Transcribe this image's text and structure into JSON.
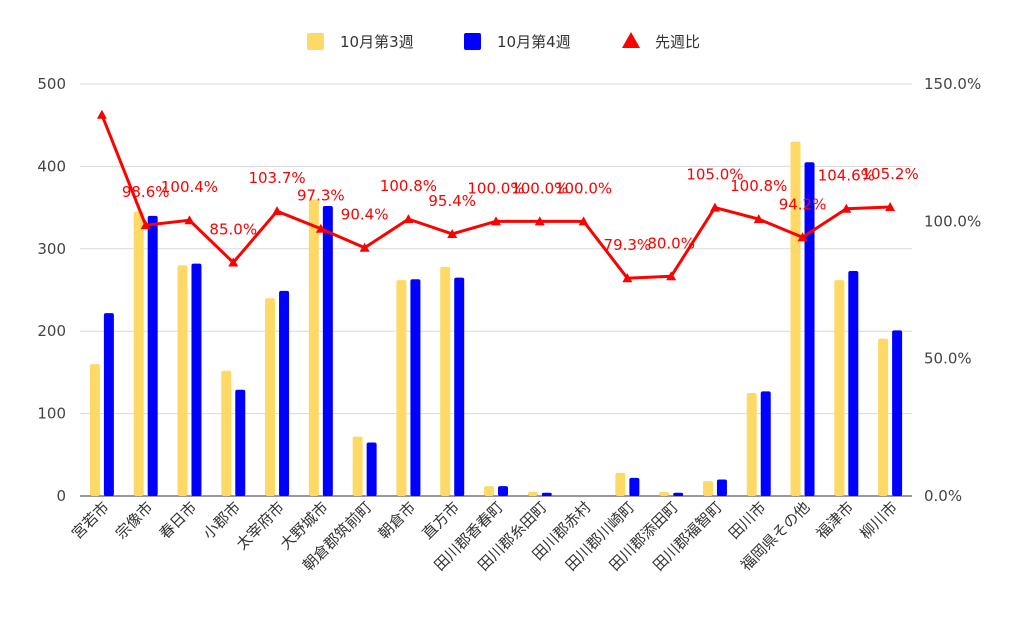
{
  "chart_data": {
    "type": "bar",
    "title": "",
    "legend_position": "top",
    "grid": true,
    "categories": [
      "宮若市",
      "宗像市",
      "春日市",
      "小郡市",
      "太宰府市",
      "大野城市",
      "朝倉郡筑前町",
      "朝倉市",
      "直方市",
      "田川郡香春町",
      "田川郡糸田町",
      "田川郡赤村",
      "田川郡川崎町",
      "田川郡添田町",
      "田川郡福智町",
      "田川市",
      "福岡県その他",
      "福津市",
      "柳川市"
    ],
    "series": [
      {
        "name": "10月第3週",
        "axis": "left",
        "color": "#ffd966",
        "values": [
          160,
          345,
          280,
          152,
          240,
          360,
          72,
          262,
          278,
          12,
          5,
          0,
          28,
          5,
          18,
          125,
          430,
          262,
          191
        ]
      },
      {
        "name": "10月第4週",
        "axis": "left",
        "color": "#0000ff",
        "values": [
          222,
          340,
          282,
          129,
          249,
          352,
          65,
          263,
          265,
          12,
          4,
          0,
          22,
          4,
          20,
          127,
          405,
          273,
          201
        ]
      },
      {
        "name": "先週比",
        "axis": "right",
        "type": "line",
        "color": "#ff0000",
        "marker": "triangle",
        "values": [
          138.8,
          98.6,
          100.4,
          85.0,
          103.7,
          97.3,
          90.4,
          100.8,
          95.4,
          100.0,
          100.0,
          100.0,
          79.3,
          80.0,
          105.0,
          100.8,
          94.2,
          104.6,
          105.2
        ]
      }
    ],
    "point_labels": [
      "",
      "98.6%",
      "100.4%",
      "85.0%",
      "103.7%",
      "97.3%",
      "90.4%",
      "100.8%",
      "95.4%",
      "100.0%",
      "100.0%",
      "100.0%",
      "79.3%",
      "80.0%",
      "105.0%",
      "100.8%",
      "94.2%",
      "104.6%",
      "105.2%"
    ],
    "y_left": {
      "range": [
        0,
        500
      ],
      "ticks": [
        "0",
        "100",
        "200",
        "300",
        "400",
        "500"
      ]
    },
    "y_right": {
      "range": [
        0,
        150
      ],
      "ticks": [
        "0.0%",
        "50.0%",
        "100.0%",
        "150.0%"
      ]
    }
  }
}
